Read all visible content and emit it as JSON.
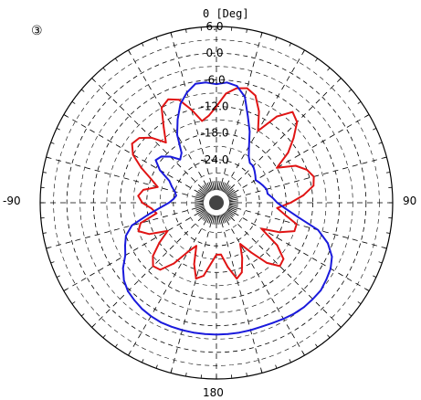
{
  "panel_marker": "③",
  "chart_data": {
    "type": "polar-line",
    "title": "",
    "angle_unit_label": "[Deg]",
    "angle_labels": [
      {
        "angle": 0,
        "text": "0 [Deg]"
      },
      {
        "angle": 90,
        "text": "90"
      },
      {
        "angle": 180,
        "text": "180"
      },
      {
        "angle": -90,
        "text": "-90"
      }
    ],
    "radial_ticks": [
      6.0,
      0.0,
      -6.0,
      -12.0,
      -18.0,
      -24.0
    ],
    "radial_tick_labels": [
      "6.0",
      "0.0",
      "-6.0",
      "-12.0",
      "-18.0",
      "-24.0"
    ],
    "radial_range": [
      -30,
      6
    ],
    "angular_grid_step_deg": 15,
    "grid": true,
    "series": [
      {
        "color": "#e01414",
        "angles": [
          0,
          5,
          10,
          15,
          20,
          25,
          30,
          35,
          40,
          45,
          50,
          55,
          60,
          65,
          70,
          75,
          80,
          85,
          90,
          95,
          100,
          105,
          110,
          115,
          120,
          125,
          130,
          135,
          140,
          145,
          150,
          155,
          160,
          165,
          170,
          175,
          180,
          185,
          190,
          195,
          200,
          205,
          210,
          215,
          220,
          225,
          230,
          235,
          240,
          245,
          250,
          255,
          260,
          265,
          270,
          275,
          280,
          285,
          290,
          295,
          300,
          305,
          310,
          315,
          320,
          325,
          330,
          335,
          340,
          345,
          350,
          355
        ],
        "values": [
          -12,
          -9,
          -7.5,
          -7,
          -8,
          -11,
          -15,
          -10,
          -7,
          -8,
          -11,
          -14,
          -18,
          -14,
          -12,
          -11,
          -11.5,
          -14,
          -17,
          -20,
          -18,
          -15,
          -15,
          -18,
          -22,
          -17,
          -14,
          -13.5,
          -16,
          -20,
          -23,
          -20,
          -17,
          -16,
          -19,
          -22,
          -22,
          -20,
          -17,
          -16,
          -19,
          -23,
          -21,
          -17,
          -14,
          -13.5,
          -15,
          -18,
          -21,
          -17,
          -15,
          -16,
          -20,
          -19,
          -17,
          -16,
          -17,
          -20,
          -18,
          -15,
          -12,
          -10.5,
          -11,
          -13,
          -16,
          -13,
          -9,
          -8,
          -9,
          -12,
          -15,
          -14
        ]
      },
      {
        "color": "#1a1adc",
        "angles": [
          0,
          5,
          10,
          15,
          20,
          25,
          30,
          35,
          40,
          45,
          50,
          55,
          60,
          65,
          70,
          75,
          80,
          85,
          90,
          95,
          100,
          105,
          110,
          115,
          120,
          125,
          130,
          135,
          140,
          145,
          150,
          155,
          160,
          165,
          170,
          175,
          180,
          185,
          190,
          195,
          200,
          205,
          210,
          215,
          220,
          225,
          230,
          235,
          240,
          245,
          250,
          255,
          260,
          265,
          270,
          275,
          280,
          285,
          290,
          295,
          300,
          305,
          310,
          315,
          320,
          325,
          330,
          335,
          340,
          345,
          350,
          355
        ],
        "values": [
          -7,
          -6.5,
          -7,
          -9,
          -13,
          -16,
          -19,
          -21,
          -22,
          -22,
          -22.5,
          -23,
          -23.5,
          -23,
          -22.5,
          -22,
          -22,
          -21,
          -20,
          -18,
          -15,
          -10,
          -7,
          -5,
          -4,
          -3.5,
          -3,
          -3,
          -3,
          -3.2,
          -3.5,
          -3.8,
          -4,
          -4,
          -4,
          -4,
          -4,
          -4,
          -4,
          -4,
          -4,
          -4,
          -4.2,
          -4.5,
          -5,
          -5.5,
          -6.5,
          -8,
          -10,
          -11,
          -12,
          -14,
          -18,
          -21,
          -23,
          -24,
          -24.5,
          -24,
          -23,
          -22,
          -19,
          -17,
          -17.5,
          -19,
          -21,
          -20,
          -16,
          -13,
          -10,
          -8,
          -6.5,
          -6.5
        ]
      }
    ]
  }
}
